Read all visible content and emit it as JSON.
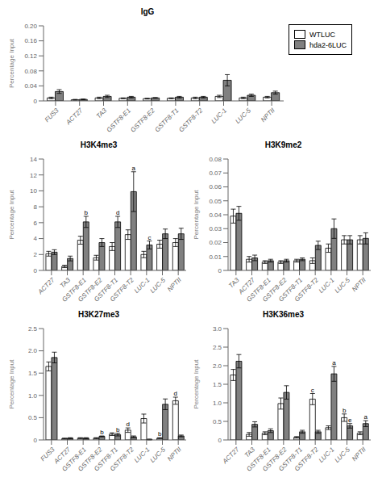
{
  "chart_data": [
    {
      "type": "bar",
      "title": "IgG",
      "y_label": "Percentage Input",
      "categories": [
        "FUS3",
        "ACT27",
        "TA3",
        "GSTF8-E1",
        "GSTF8-E2",
        "GSTF8-T1",
        "GSTF8-T2",
        "LUC-1",
        "LUC-5",
        "NPTII"
      ],
      "series": [
        {
          "name": "WTLUC",
          "color": "#FFFFFF",
          "values": [
            0.008,
            0.003,
            0.008,
            0.007,
            0.006,
            0.007,
            0.008,
            0.012,
            0.008,
            0.01
          ],
          "errors": [
            0.002,
            0.001,
            0.002,
            0.001,
            0.001,
            0.001,
            0.002,
            0.003,
            0.002,
            0.002
          ]
        },
        {
          "name": "hda2-6LUC",
          "color": "#808080",
          "values": [
            0.025,
            0.004,
            0.012,
            0.01,
            0.008,
            0.01,
            0.01,
            0.055,
            0.015,
            0.022
          ],
          "errors": [
            0.005,
            0.001,
            0.003,
            0.002,
            0.001,
            0.002,
            0.002,
            0.015,
            0.003,
            0.004
          ]
        }
      ],
      "ylim": [
        0,
        0.2
      ],
      "yticks": [
        0,
        0.04,
        0.08,
        0.12,
        0.16,
        {
          "value": 0.2,
          "label": "0.20"
        }
      ],
      "grid": false,
      "legend": "right"
    },
    {
      "type": "bar",
      "title": "H3K4me3",
      "y_label": "Percentage Input",
      "categories": [
        "ACT27",
        "TA3",
        "GSTF8-E1",
        "GSTF8-E2",
        "GSTF8-T1",
        "GSTF8-T2",
        "LUC-1",
        "LUC-5",
        "NPTII"
      ],
      "series": [
        {
          "name": "WTLUC",
          "color": "#FFFFFF",
          "values": [
            2.1,
            0.5,
            3.8,
            1.6,
            3.0,
            4.5,
            2.0,
            3.3,
            3.5
          ],
          "errors": [
            0.3,
            0.15,
            0.5,
            0.3,
            0.5,
            0.6,
            0.4,
            0.5,
            0.5
          ]
        },
        {
          "name": "hda2-6LUC",
          "color": "#808080",
          "values": [
            2.3,
            1.5,
            6.1,
            3.5,
            6.1,
            9.9,
            3.2,
            4.6,
            4.6
          ],
          "errors": [
            0.3,
            0.3,
            0.7,
            0.5,
            0.7,
            2.5,
            0.5,
            0.6,
            0.7
          ]
        }
      ],
      "ylim": [
        0,
        14
      ],
      "yticks": [
        0,
        2,
        4,
        6,
        8,
        10,
        12,
        14
      ],
      "grid": false,
      "annotations": [
        {
          "text": "a",
          "category": "GSTF8-T2",
          "series": "hda2-6LUC"
        },
        {
          "text": "b",
          "category": "GSTF8-E1",
          "series": "hda2-6LUC"
        },
        {
          "text": "d",
          "category": "GSTF8-T1",
          "series": "hda2-6LUC"
        },
        {
          "text": "c",
          "category": "LUC-1",
          "series": "hda2-6LUC"
        }
      ]
    },
    {
      "type": "bar",
      "title": "H3K9me2",
      "y_label": "Percentage Input",
      "categories": [
        "TA3",
        "ACT27",
        "GSTF8-E1",
        "GSTF8-E2",
        "GSTF8-T1",
        "GSTF8-T2",
        "LUC-1",
        "LUC-5",
        "NPTII"
      ],
      "series": [
        {
          "name": "WTLUC",
          "color": "#FFFFFF",
          "values": [
            0.039,
            0.008,
            0.006,
            0.006,
            0.007,
            0.007,
            0.016,
            0.022,
            0.022
          ],
          "errors": [
            0.005,
            0.002,
            0.001,
            0.001,
            0.001,
            0.002,
            0.003,
            0.003,
            0.003
          ]
        },
        {
          "name": "hda2-6LUC",
          "color": "#808080",
          "values": [
            0.041,
            0.009,
            0.007,
            0.007,
            0.008,
            0.018,
            0.03,
            0.022,
            0.023
          ],
          "errors": [
            0.005,
            0.002,
            0.001,
            0.001,
            0.001,
            0.003,
            0.007,
            0.003,
            0.004
          ]
        }
      ],
      "ylim": [
        0,
        0.08
      ],
      "yticks": [
        0,
        0.01,
        0.02,
        0.03,
        0.04,
        0.05,
        0.06,
        0.07,
        0.08
      ],
      "grid": false
    },
    {
      "type": "bar",
      "title": "H3K27me3",
      "y_label": "Percentage Input",
      "categories": [
        "FUS3",
        "ACT27",
        "GSTF8-E1",
        "GSTF8-E2",
        "GSTF8-T1",
        "GSTF8-T2",
        "LUC-1",
        "LUC-5",
        "NPTII"
      ],
      "series": [
        {
          "name": "WTLUC",
          "color": "#FFFFFF",
          "values": [
            1.65,
            0.03,
            0.04,
            0.04,
            0.13,
            0.22,
            0.48,
            0.04,
            0.88
          ],
          "errors": [
            0.1,
            0.01,
            0.01,
            0.01,
            0.03,
            0.05,
            0.1,
            0.01,
            0.08
          ]
        },
        {
          "name": "hda2-6LUC",
          "color": "#808080",
          "values": [
            1.85,
            0.04,
            0.04,
            0.08,
            0.12,
            0.07,
            0.01,
            0.8,
            0.09
          ],
          "errors": [
            0.12,
            0.01,
            0.01,
            0.01,
            0.03,
            0.02,
            0.01,
            0.12,
            0.02
          ]
        }
      ],
      "ylim": [
        0,
        2.5
      ],
      "yticks": [
        0,
        0.5,
        {
          "value": 1,
          "label": "1.0"
        },
        1.5,
        {
          "value": 2,
          "label": "2.0"
        },
        2.5
      ],
      "grid": false,
      "annotations": [
        {
          "text": "b",
          "category": "GSTF8-E2",
          "series": "hda2-6LUC"
        },
        {
          "text": "b",
          "category": "GSTF8-T1",
          "series": "hda2-6LUC"
        },
        {
          "text": "d",
          "category": "GSTF8-T2",
          "series": "WTLUC"
        },
        {
          "text": "b",
          "category": "LUC-5",
          "series": "WTLUC"
        },
        {
          "text": "d",
          "category": "NPTII",
          "series": "WTLUC"
        }
      ]
    },
    {
      "type": "bar",
      "title": "H3K36me3",
      "y_label": "Percentage Input",
      "categories": [
        "ACT27",
        "TA3",
        "GSTF8-E1",
        "GSTF8-E2",
        "GSTF8-T1",
        "GSTF8-T2",
        "LUC-1",
        "LUC-5",
        "NPTII"
      ],
      "series": [
        {
          "name": "WTLUC",
          "color": "#FFFFFF",
          "values": [
            1.75,
            0.15,
            0.18,
            0.98,
            0.07,
            1.1,
            0.33,
            0.6,
            0.18
          ],
          "errors": [
            0.15,
            0.05,
            0.04,
            0.15,
            0.02,
            0.15,
            0.05,
            0.1,
            0.04
          ]
        },
        {
          "name": "hda2-6LUC",
          "color": "#808080",
          "values": [
            2.12,
            0.42,
            0.25,
            1.28,
            0.22,
            0.22,
            1.78,
            0.38,
            0.44
          ],
          "errors": [
            0.18,
            0.07,
            0.05,
            0.18,
            0.04,
            0.04,
            0.2,
            0.06,
            0.08
          ]
        }
      ],
      "ylim": [
        0,
        3
      ],
      "yticks": [
        0,
        0.5,
        {
          "value": 1,
          "label": "1.0"
        },
        1.5,
        {
          "value": 2,
          "label": "2.0"
        },
        2.5,
        {
          "value": 3,
          "label": "3.0"
        }
      ],
      "grid": false,
      "annotations": [
        {
          "text": "a",
          "category": "LUC-1",
          "series": "hda2-6LUC"
        },
        {
          "text": "b",
          "category": "LUC-5",
          "series": "WTLUC"
        },
        {
          "text": "c",
          "category": "GSTF8-T2",
          "series": "WTLUC"
        },
        {
          "text": "a",
          "category": "NPTII",
          "series": "hda2-6LUC"
        },
        {
          "text": "e",
          "category": "LUC-5",
          "series": "hda2-6LUC"
        }
      ]
    }
  ]
}
